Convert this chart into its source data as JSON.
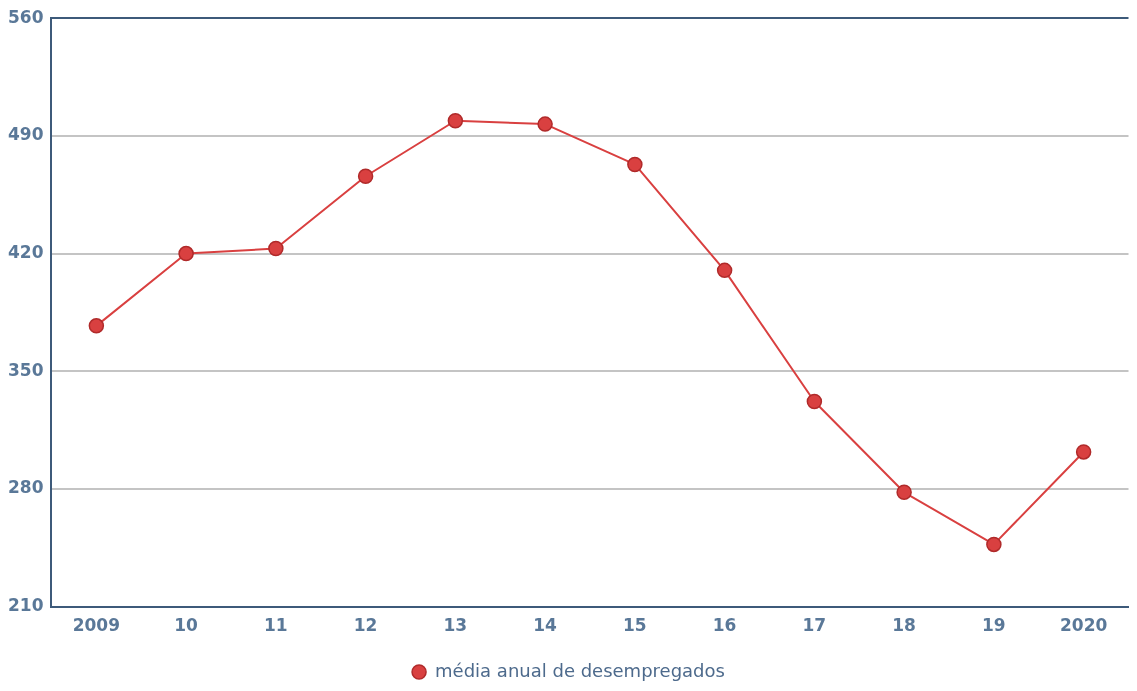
{
  "chart_data": {
    "type": "line",
    "categories": [
      "2009",
      "10",
      "11",
      "12",
      "13",
      "14",
      "15",
      "16",
      "17",
      "18",
      "19",
      "2020"
    ],
    "series": [
      {
        "name": "média anual de desempregados",
        "color": "#d94040",
        "values": [
          377,
          420,
          423,
          466,
          499,
          497,
          473,
          410,
          332,
          278,
          247,
          302
        ]
      }
    ],
    "ylim": [
      210,
      560
    ],
    "yticks": [
      210,
      280,
      350,
      420,
      490,
      560
    ],
    "grid": "y",
    "legend": "bottom",
    "marker": "circle",
    "line_style": "solid"
  }
}
